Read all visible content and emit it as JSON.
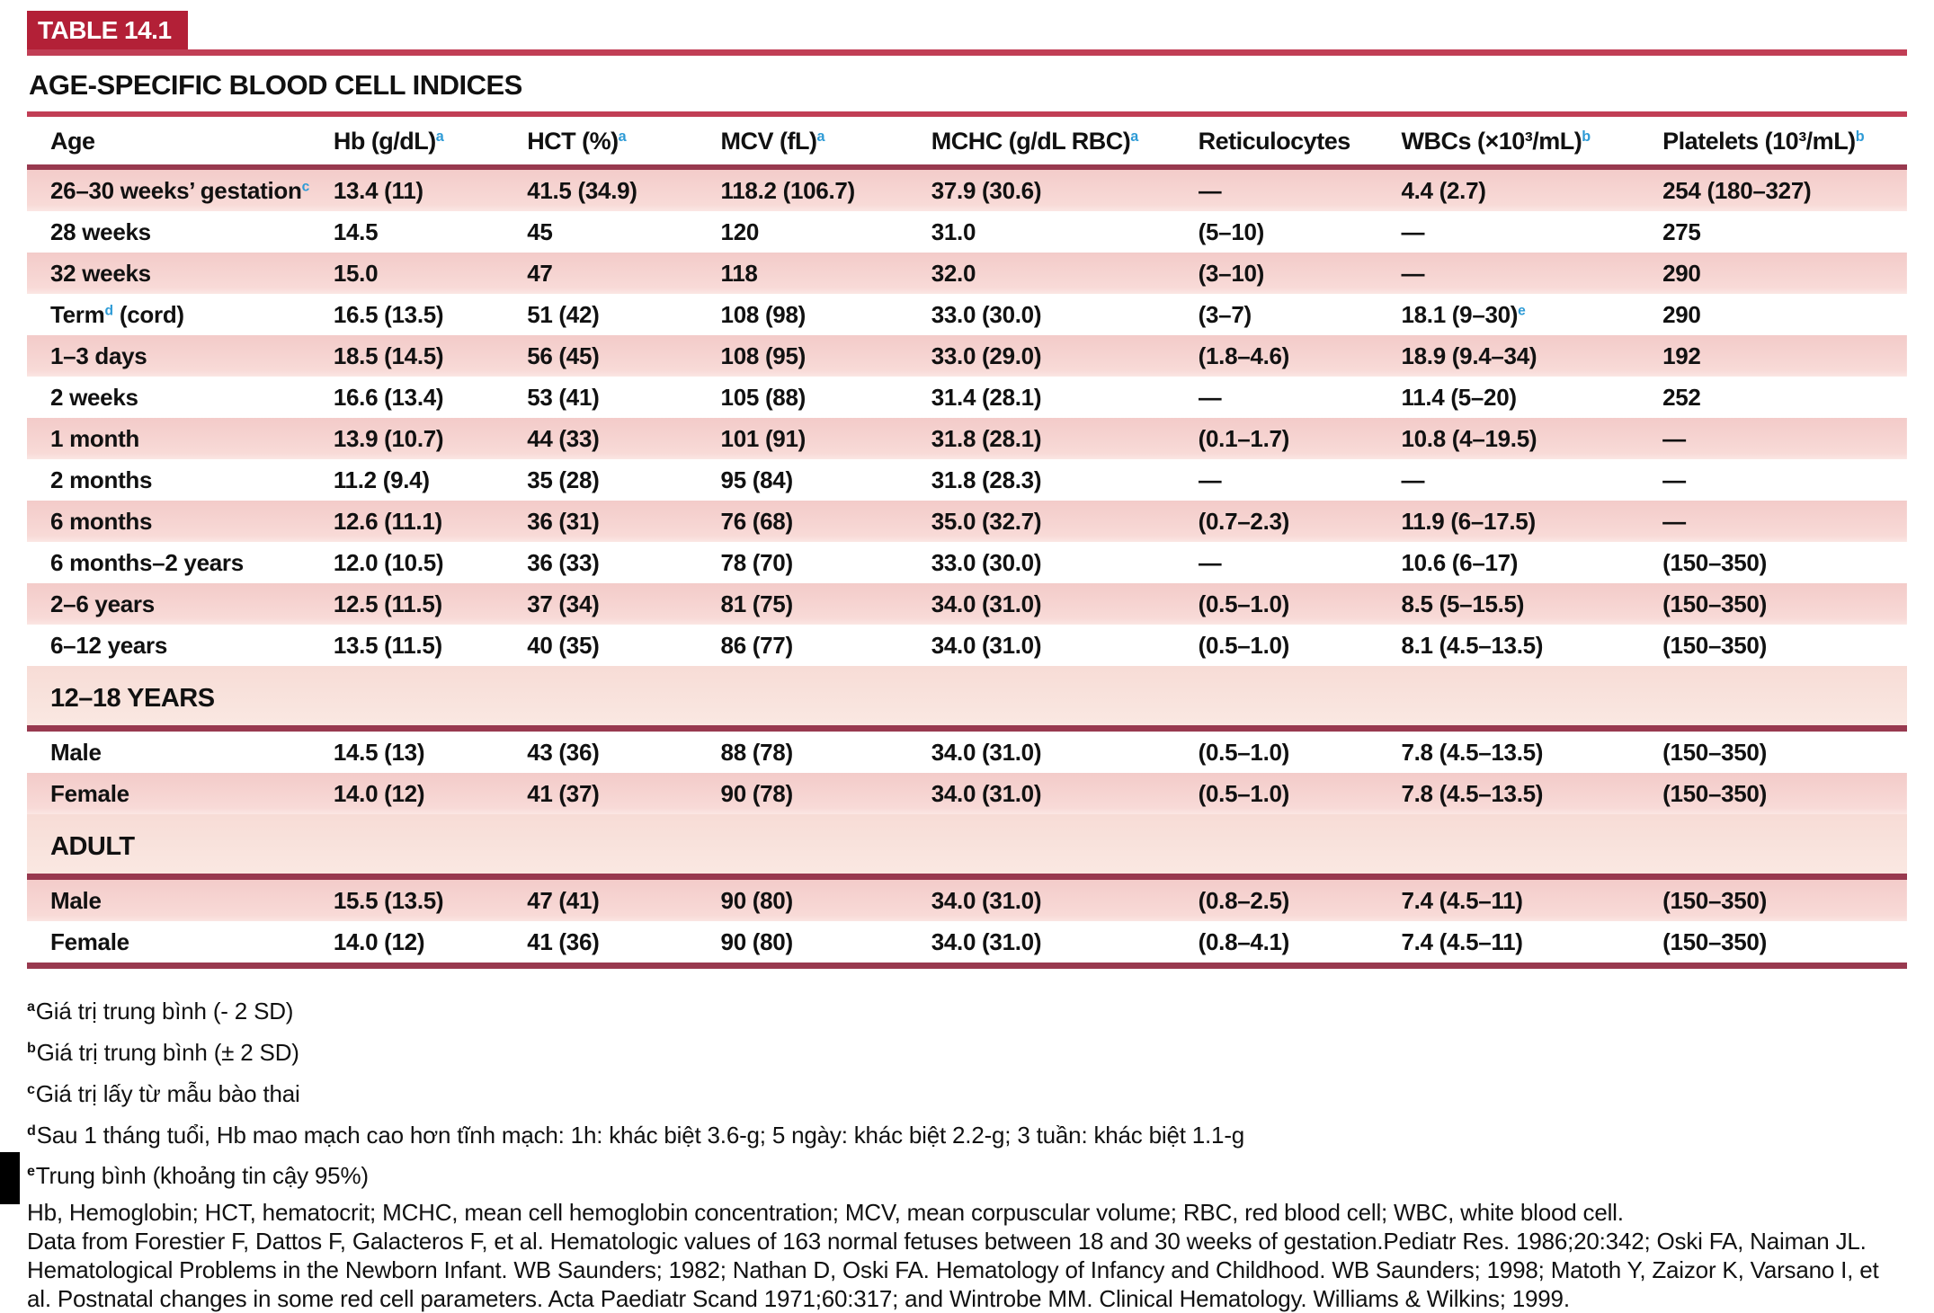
{
  "colors": {
    "crimson_box": "#b32037",
    "bright_rule": "#c13e55",
    "dark_rule": "#98394f",
    "pink_row": "#f6d3d1",
    "section_bg": "#f9e3de",
    "superscript_blue": "#2e9bd6"
  },
  "header": {
    "table_label": "TABLE 14.1",
    "title": "AGE-SPECIFIC BLOOD CELL INDICES"
  },
  "table": {
    "columns": [
      "Age",
      "Hb (g/dL)^{a}",
      "HCT (%)^{a}",
      "MCV (fL)^{a}",
      "MCHC (g/dL RBC)^{a}",
      "Reticulocytes",
      "WBCs (×10³/mL)^{b}",
      "Platelets (10³/mL)^{b}"
    ],
    "rows": [
      {
        "kind": "data",
        "shade": "pink",
        "cells": [
          "26–30 weeks’ gestation^{c}",
          "13.4 (11)",
          "41.5 (34.9)",
          "118.2 (106.7)",
          "37.9 (30.6)",
          "—",
          "4.4 (2.7)",
          "254 (180–327)"
        ]
      },
      {
        "kind": "data",
        "shade": "white",
        "cells": [
          "28 weeks",
          "14.5",
          "45",
          "120",
          "31.0",
          "(5–10)",
          "—",
          "275"
        ]
      },
      {
        "kind": "data",
        "shade": "pink",
        "cells": [
          "32 weeks",
          "15.0",
          "47",
          "118",
          "32.0",
          "(3–10)",
          "—",
          "290"
        ]
      },
      {
        "kind": "data",
        "shade": "white",
        "cells": [
          "Term^{d} (cord)",
          "16.5 (13.5)",
          "51 (42)",
          "108 (98)",
          "33.0 (30.0)",
          "(3–7)",
          "18.1 (9–30)^{e}",
          "290"
        ]
      },
      {
        "kind": "data",
        "shade": "pink",
        "cells": [
          "1–3 days",
          "18.5 (14.5)",
          "56 (45)",
          "108 (95)",
          "33.0 (29.0)",
          "(1.8–4.6)",
          "18.9 (9.4–34)",
          "192"
        ]
      },
      {
        "kind": "data",
        "shade": "white",
        "cells": [
          "2 weeks",
          "16.6 (13.4)",
          "53 (41)",
          "105 (88)",
          "31.4 (28.1)",
          "—",
          "11.4 (5–20)",
          "252"
        ]
      },
      {
        "kind": "data",
        "shade": "pink",
        "cells": [
          "1 month",
          "13.9 (10.7)",
          "44 (33)",
          "101 (91)",
          "31.8 (28.1)",
          "(0.1–1.7)",
          "10.8 (4–19.5)",
          "—"
        ]
      },
      {
        "kind": "data",
        "shade": "white",
        "cells": [
          "2 months",
          "11.2 (9.4)",
          "35 (28)",
          "95 (84)",
          "31.8 (28.3)",
          "—",
          "—",
          "—"
        ]
      },
      {
        "kind": "data",
        "shade": "pink",
        "cells": [
          "6 months",
          "12.6 (11.1)",
          "36 (31)",
          "76 (68)",
          "35.0 (32.7)",
          "(0.7–2.3)",
          "11.9 (6–17.5)",
          "—"
        ]
      },
      {
        "kind": "data",
        "shade": "white",
        "cells": [
          "6 months–2 years",
          "12.0 (10.5)",
          "36 (33)",
          "78 (70)",
          "33.0 (30.0)",
          "—",
          "10.6 (6–17)",
          "(150–350)"
        ]
      },
      {
        "kind": "data",
        "shade": "pink",
        "cells": [
          "2–6 years",
          "12.5 (11.5)",
          "37 (34)",
          "81 (75)",
          "34.0 (31.0)",
          "(0.5–1.0)",
          "8.5 (5–15.5)",
          "(150–350)"
        ]
      },
      {
        "kind": "data",
        "shade": "white",
        "cells": [
          "6–12 years",
          "13.5 (11.5)",
          "40 (35)",
          "86 (77)",
          "34.0 (31.0)",
          "(0.5–1.0)",
          "8.1 (4.5–13.5)",
          "(150–350)"
        ]
      },
      {
        "kind": "section",
        "label": "12–18 YEARS"
      },
      {
        "kind": "data",
        "shade": "white",
        "cells": [
          "Male",
          "14.5 (13)",
          "43 (36)",
          "88 (78)",
          "34.0 (31.0)",
          "(0.5–1.0)",
          "7.8 (4.5–13.5)",
          "(150–350)"
        ]
      },
      {
        "kind": "data",
        "shade": "pink",
        "cells": [
          "Female",
          "14.0 (12)",
          "41 (37)",
          "90 (78)",
          "34.0 (31.0)",
          "(0.5–1.0)",
          "7.8 (4.5–13.5)",
          "(150–350)"
        ]
      },
      {
        "kind": "section",
        "label": "ADULT"
      },
      {
        "kind": "data",
        "shade": "pink",
        "cells": [
          "Male",
          "15.5 (13.5)",
          "47 (41)",
          "90 (80)",
          "34.0 (31.0)",
          "(0.8–2.5)",
          "7.4 (4.5–11)",
          "(150–350)"
        ]
      },
      {
        "kind": "data",
        "shade": "white",
        "cells": [
          "Female",
          "14.0 (12)",
          "41 (36)",
          "90 (80)",
          "34.0 (31.0)",
          "(0.8–4.1)",
          "7.4 (4.5–11)",
          "(150–350)"
        ]
      }
    ]
  },
  "footnotes": [
    {
      "mark": "a",
      "text": "Giá trị trung bình (- 2 SD)"
    },
    {
      "mark": "b",
      "text": "Giá trị trung bình (± 2 SD)"
    },
    {
      "mark": "c",
      "text": "Giá trị lấy từ mẫu bào thai"
    },
    {
      "mark": "d",
      "text": "Sau 1 tháng tuổi, Hb mao mạch cao hơn tĩnh mạch: 1h: khác biệt 3.6-g; 5 ngày: khác biệt 2.2-g; 3 tuần: khác biệt 1.1-g"
    },
    {
      "mark": "e",
      "text": "Trung bình (khoảng tin cậy 95%)"
    }
  ],
  "notes": {
    "abbreviations": "Hb, Hemoglobin; HCT, hematocrit; MCHC, mean cell hemoglobin concentration; MCV, mean corpuscular volume; RBC, red blood cell; WBC, white blood cell.",
    "citation": "Data from Forestier F, Dattos F, Galacteros F, et al. Hematologic values of 163 normal fetuses between 18 and 30 weeks of gestation.Pediatr Res. 1986;20:342; Oski FA, Naiman JL. Hematological Problems in the Newborn Infant. WB Saunders; 1982; Nathan D, Oski FA. Hematology of Infancy and Childhood. WB Saunders; 1998; Matoth Y, Zaizor K, Varsano I, et al. Postnatal changes in some red cell parameters. Acta Paediatr Scand 1971;60:317; and Wintrobe MM. Clinical Hematology. Williams & Wilkins; 1999."
  }
}
